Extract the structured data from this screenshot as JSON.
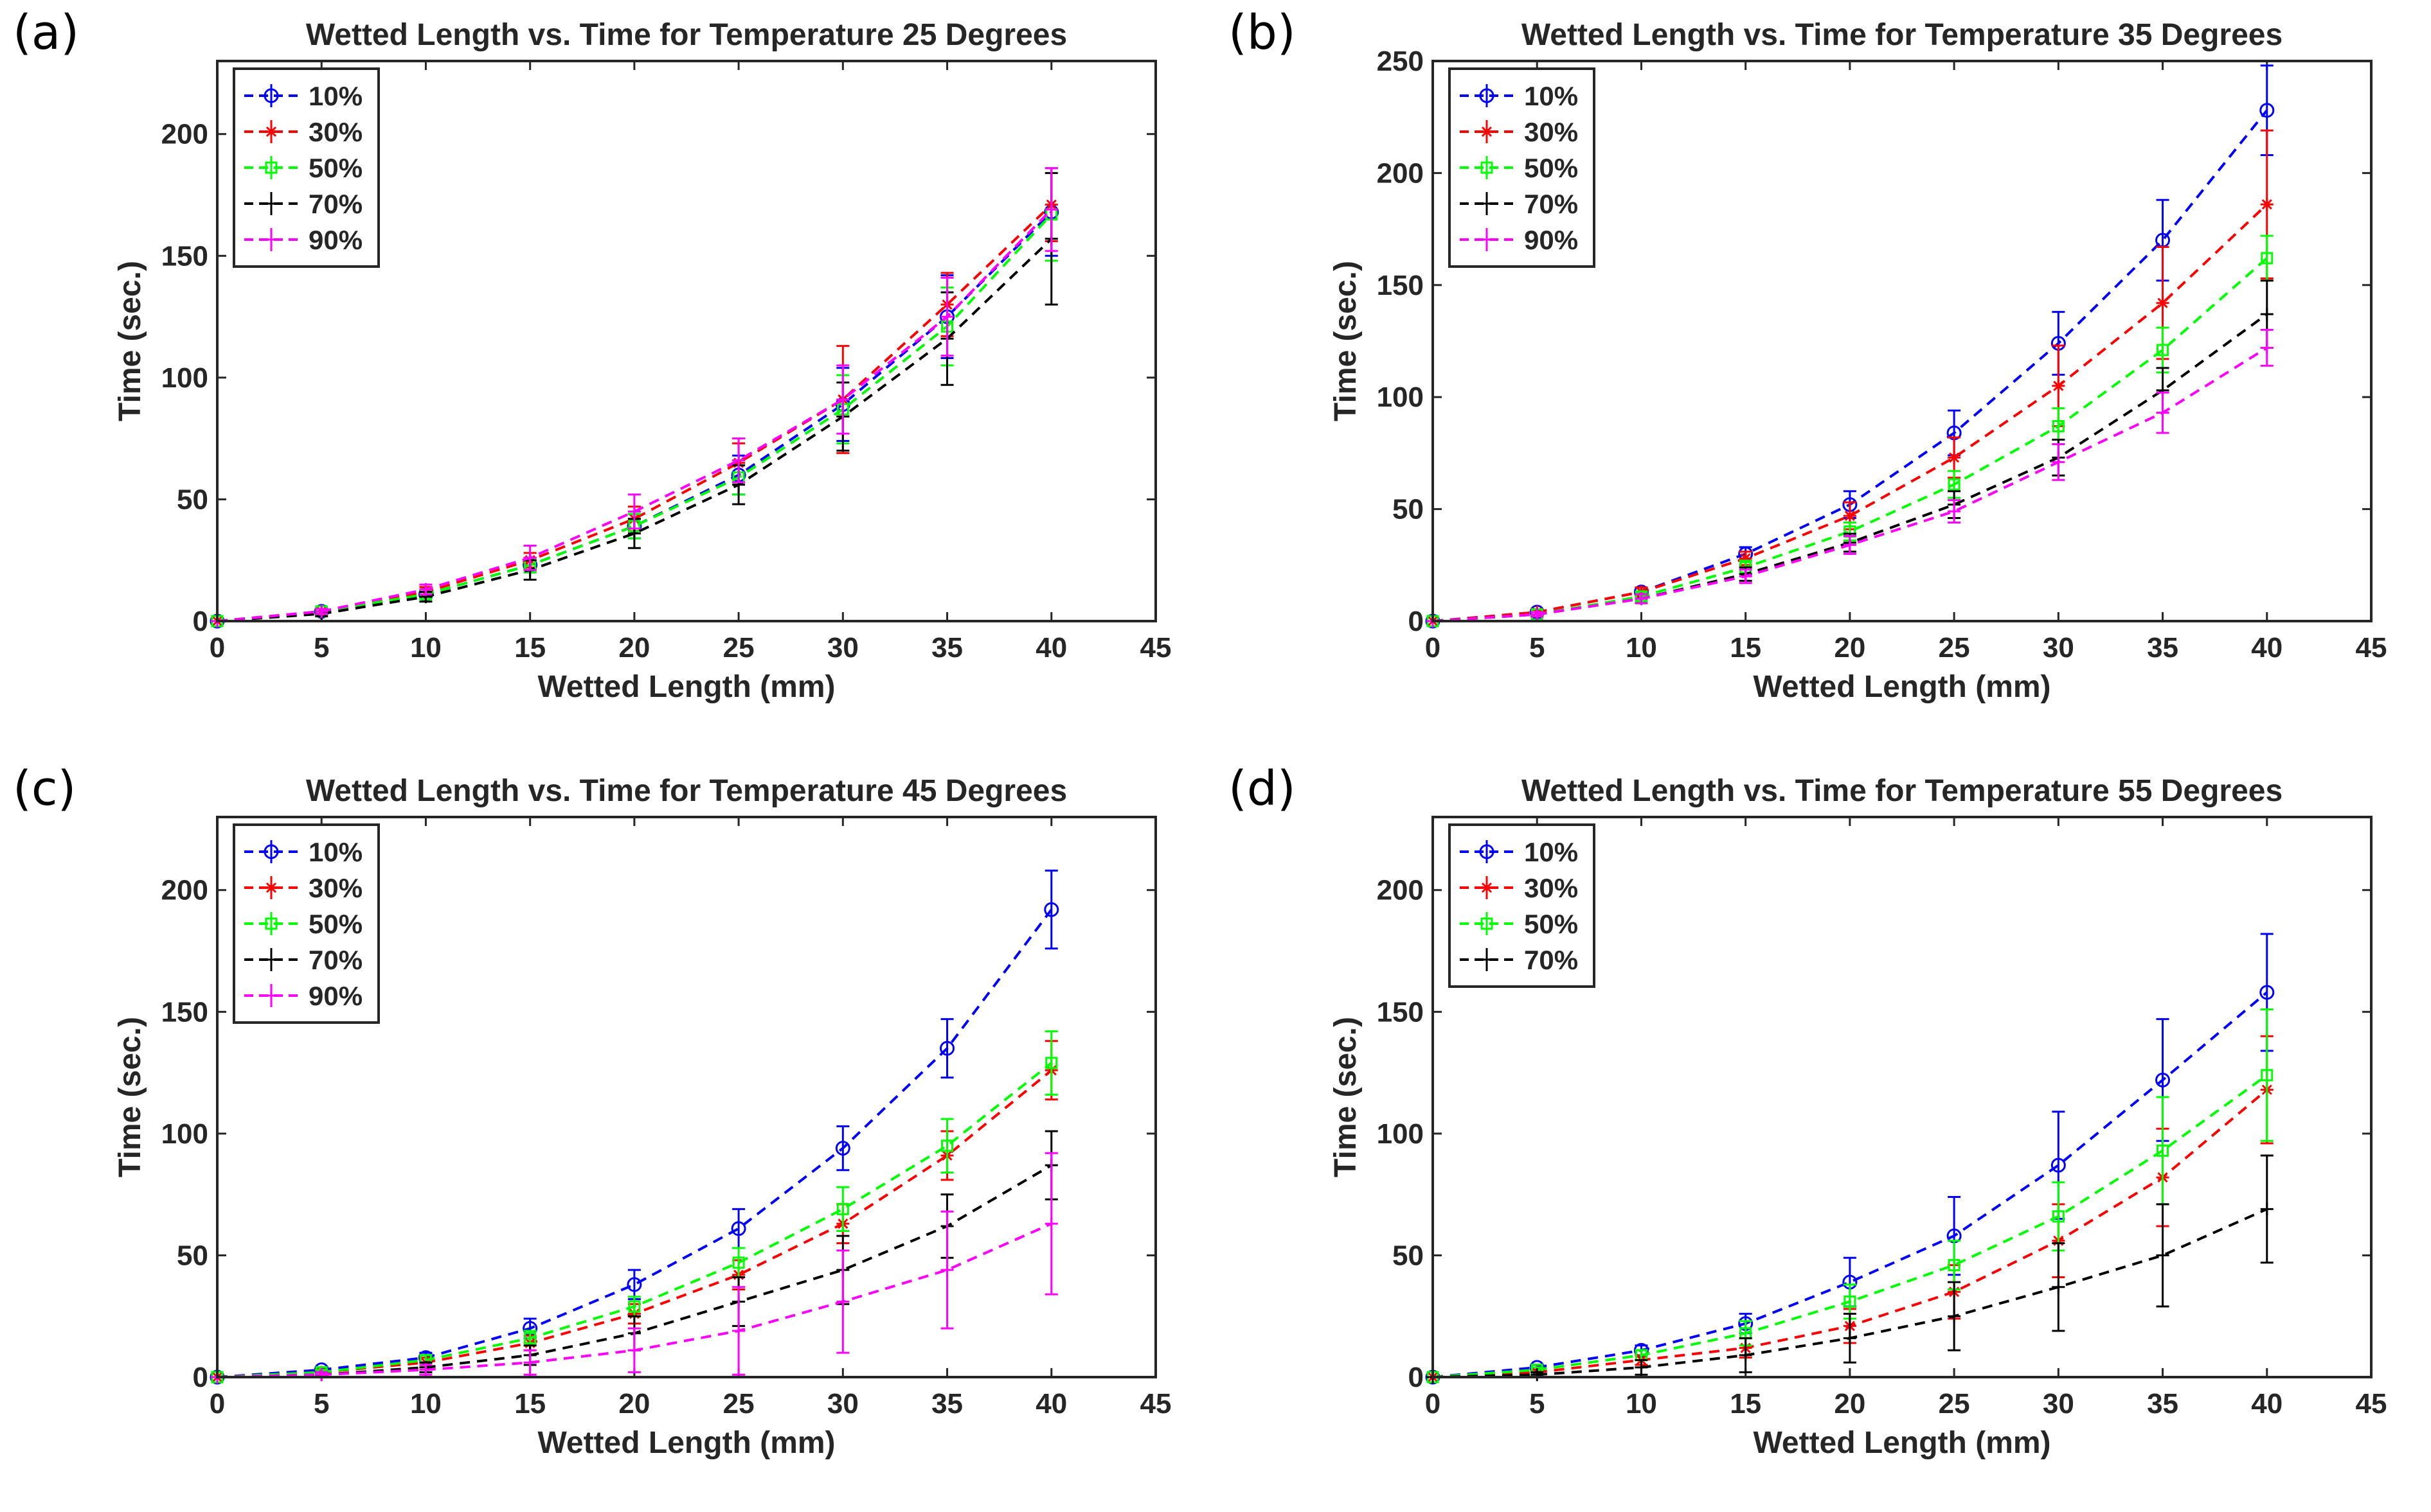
{
  "panels": [
    {
      "label": "(a)",
      "chart_data": {
        "type": "line",
        "title": "Wetted Length vs. Time for Temperature 25 Degrees",
        "xlabel": "Wetted Length (mm)",
        "ylabel": "Time (sec.)",
        "xlim": [
          0,
          45
        ],
        "ylim": [
          0,
          230
        ],
        "xticks": [
          0,
          5,
          10,
          15,
          20,
          25,
          30,
          35,
          40,
          45
        ],
        "yticks": [
          0,
          50,
          100,
          150,
          200
        ],
        "legend_position": "top-left",
        "x": [
          0,
          5,
          10,
          15,
          20,
          25,
          30,
          35,
          40
        ],
        "series": [
          {
            "name": "10%",
            "color": "#0000ff",
            "marker": "circle",
            "values": [
              0,
              4,
              11,
              23,
              39,
              60,
              89,
              125,
              168
            ],
            "errors": [
              0,
              1,
              2,
              3,
              5,
              8,
              15,
              17,
              18
            ]
          },
          {
            "name": "30%",
            "color": "#ff0000",
            "marker": "star",
            "values": [
              0,
              4,
              12,
              25,
              42,
              65,
              91,
              130,
              171
            ],
            "errors": [
              0,
              1,
              2,
              3,
              5,
              8,
              22,
              13,
              15
            ]
          },
          {
            "name": "50%",
            "color": "#00ff00",
            "marker": "square",
            "values": [
              0,
              4,
              11,
              23,
              39,
              59,
              87,
              121,
              167
            ],
            "errors": [
              0,
              1,
              2,
              3,
              5,
              7,
              14,
              16,
              19
            ]
          },
          {
            "name": "70%",
            "color": "#000000",
            "marker": "plus",
            "values": [
              0,
              3,
              10,
              21,
              36,
              56,
              84,
              116,
              157
            ],
            "errors": [
              0,
              1,
              2,
              4,
              6,
              8,
              14,
              19,
              27
            ]
          },
          {
            "name": "90%",
            "color": "#ff00ff",
            "marker": "plus",
            "values": [
              0,
              4,
              13,
              26,
              45,
              66,
              91,
              125,
              169
            ],
            "errors": [
              0,
              1,
              2,
              5,
              7,
              9,
              14,
              16,
              17
            ]
          }
        ]
      }
    },
    {
      "label": "(b)",
      "chart_data": {
        "type": "line",
        "title": "Wetted Length vs. Time for Temperature 35 Degrees",
        "xlabel": "Wetted Length (mm)",
        "ylabel": "Time (sec.)",
        "xlim": [
          0,
          45
        ],
        "ylim": [
          0,
          250
        ],
        "xticks": [
          0,
          5,
          10,
          15,
          20,
          25,
          30,
          35,
          40,
          45
        ],
        "yticks": [
          0,
          50,
          100,
          150,
          200,
          250
        ],
        "legend_position": "top-left",
        "x": [
          0,
          5,
          10,
          15,
          20,
          25,
          30,
          35,
          40
        ],
        "series": [
          {
            "name": "10%",
            "color": "#0000ff",
            "marker": "circle",
            "values": [
              0,
              4,
              13,
              30,
              52,
              84,
              124,
              170,
              228
            ],
            "errors": [
              0,
              1,
              2,
              3,
              6,
              10,
              14,
              18,
              20
            ]
          },
          {
            "name": "30%",
            "color": "#ff0000",
            "marker": "star",
            "values": [
              0,
              4,
              13,
              28,
              47,
              73,
              105,
              142,
              186
            ],
            "errors": [
              0,
              1,
              2,
              3,
              6,
              9,
              18,
              25,
              33
            ]
          },
          {
            "name": "50%",
            "color": "#00ff00",
            "marker": "square",
            "values": [
              0,
              3,
              11,
              24,
              40,
              61,
              87,
              121,
              162
            ],
            "errors": [
              0,
              1,
              2,
              3,
              4,
              6,
              8,
              10,
              10
            ]
          },
          {
            "name": "70%",
            "color": "#000000",
            "marker": "plus",
            "values": [
              0,
              3,
              10,
              21,
              35,
              52,
              73,
              103,
              137
            ],
            "errors": [
              0,
              1,
              2,
              3,
              4,
              6,
              8,
              10,
              15
            ]
          },
          {
            "name": "90%",
            "color": "#ff00ff",
            "marker": "plus",
            "values": [
              0,
              3,
              10,
              20,
              34,
              49,
              71,
              93,
              122
            ],
            "errors": [
              0,
              1,
              2,
              3,
              4,
              5,
              8,
              9,
              8
            ]
          }
        ]
      }
    },
    {
      "label": "(c)",
      "chart_data": {
        "type": "line",
        "title": "Wetted Length vs. Time for Temperature 45 Degrees",
        "xlabel": "Wetted Length (mm)",
        "ylabel": "Time (sec.)",
        "xlim": [
          0,
          45
        ],
        "ylim": [
          0,
          230
        ],
        "xticks": [
          0,
          5,
          10,
          15,
          20,
          25,
          30,
          35,
          40,
          45
        ],
        "yticks": [
          0,
          50,
          100,
          150,
          200
        ],
        "legend_position": "top-left",
        "x": [
          0,
          5,
          10,
          15,
          20,
          25,
          30,
          35,
          40
        ],
        "series": [
          {
            "name": "10%",
            "color": "#0000ff",
            "marker": "circle",
            "values": [
              0,
              3,
              8,
              20,
              38,
              61,
              94,
              135,
              192
            ],
            "errors": [
              0,
              1,
              2,
              4,
              6,
              8,
              9,
              12,
              16
            ]
          },
          {
            "name": "30%",
            "color": "#ff0000",
            "marker": "star",
            "values": [
              0,
              2,
              6,
              14,
              26,
              42,
              63,
              91,
              126
            ],
            "errors": [
              0,
              1,
              2,
              3,
              4,
              6,
              8,
              10,
              12
            ]
          },
          {
            "name": "50%",
            "color": "#00ff00",
            "marker": "square",
            "values": [
              0,
              2,
              7,
              16,
              29,
              47,
              69,
              95,
              129
            ],
            "errors": [
              0,
              1,
              2,
              3,
              4,
              6,
              9,
              11,
              13
            ]
          },
          {
            "name": "70%",
            "color": "#000000",
            "marker": "plus",
            "values": [
              0,
              1,
              4,
              9,
              18,
              31,
              44,
              62,
              87
            ],
            "errors": [
              0,
              1,
              2,
              4,
              7,
              10,
              14,
              13,
              14
            ]
          },
          {
            "name": "90%",
            "color": "#ff00ff",
            "marker": "plus",
            "values": [
              0,
              1,
              3,
              6,
              11,
              19,
              31,
              44,
              63
            ],
            "errors": [
              0,
              1,
              2,
              5,
              9,
              18,
              21,
              24,
              29
            ]
          }
        ]
      }
    },
    {
      "label": "(d)",
      "chart_data": {
        "type": "line",
        "title": "Wetted Length vs. Time for Temperature 55 Degrees",
        "xlabel": "Wetted Length (mm)",
        "ylabel": "Time (sec.)",
        "xlim": [
          0,
          45
        ],
        "ylim": [
          0,
          230
        ],
        "xticks": [
          0,
          5,
          10,
          15,
          20,
          25,
          30,
          35,
          40,
          45
        ],
        "yticks": [
          0,
          50,
          100,
          150,
          200
        ],
        "legend_position": "top-left",
        "x": [
          0,
          5,
          10,
          15,
          20,
          25,
          30,
          35,
          40
        ],
        "series": [
          {
            "name": "10%",
            "color": "#0000ff",
            "marker": "circle",
            "values": [
              0,
              4,
              11,
              22,
              39,
              58,
              87,
              122,
              158
            ],
            "errors": [
              0,
              1,
              2,
              4,
              10,
              16,
              22,
              25,
              24
            ]
          },
          {
            "name": "30%",
            "color": "#ff0000",
            "marker": "star",
            "values": [
              0,
              2,
              7,
              12,
              21,
              35,
              56,
              82,
              118
            ],
            "errors": [
              0,
              1,
              2,
              4,
              7,
              11,
              15,
              20,
              22
            ]
          },
          {
            "name": "50%",
            "color": "#00ff00",
            "marker": "square",
            "values": [
              0,
              3,
              9,
              18,
              31,
              46,
              66,
              93,
              124
            ],
            "errors": [
              0,
              1,
              2,
              5,
              7,
              10,
              14,
              22,
              27
            ]
          },
          {
            "name": "70%",
            "color": "#000000",
            "marker": "plus",
            "values": [
              0,
              1,
              4,
              9,
              16,
              25,
              37,
              50,
              69
            ],
            "errors": [
              0,
              1,
              3,
              7,
              10,
              14,
              18,
              21,
              22
            ]
          }
        ]
      }
    }
  ]
}
